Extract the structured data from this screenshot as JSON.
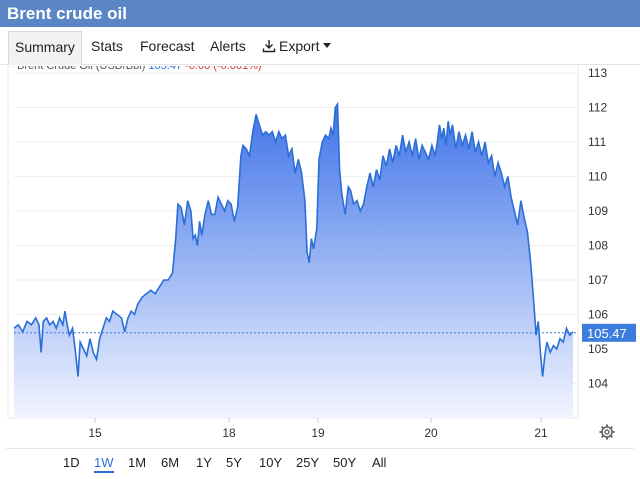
{
  "window": {
    "title": "Brent crude oil"
  },
  "tabs": [
    {
      "label": "Summary",
      "active": true
    },
    {
      "label": "Stats",
      "active": false
    },
    {
      "label": "Forecast",
      "active": false
    },
    {
      "label": "Alerts",
      "active": false
    },
    {
      "label": "Export",
      "active": false,
      "icon": "download-icon",
      "dropdown": true
    }
  ],
  "legend": {
    "name": "Brent Crude Oil (USD/Bbl)",
    "price": "105.47",
    "change": "-0.00 (-0.001%)"
  },
  "colors": {
    "line": "#2b6fd6",
    "fill_top": "#3f73e8",
    "fill_bottom": "#f2f5ff",
    "header": "#5b86c5",
    "current_label": "#3b7ddd"
  },
  "chart_data": {
    "type": "area",
    "y_ticks": [
      "113",
      "112",
      "111",
      "110",
      "109",
      "108",
      "107",
      "106",
      "105",
      "104"
    ],
    "x_ticks": [
      "15",
      "18",
      "19",
      "20",
      "21"
    ],
    "ylim": [
      103,
      113
    ],
    "current_value": 105.47,
    "current_label": "105.47",
    "grid": true,
    "points": [
      [
        0.0,
        105.6
      ],
      [
        0.4,
        105.7
      ],
      [
        0.8,
        105.5
      ],
      [
        1.2,
        105.8
      ],
      [
        1.6,
        105.7
      ],
      [
        2.0,
        105.9
      ],
      [
        2.3,
        105.7
      ],
      [
        2.5,
        104.9
      ],
      [
        2.7,
        105.8
      ],
      [
        3.0,
        105.9
      ],
      [
        3.3,
        105.7
      ],
      [
        3.6,
        105.8
      ],
      [
        3.9,
        105.6
      ],
      [
        4.2,
        105.9
      ],
      [
        4.5,
        105.7
      ],
      [
        4.7,
        106.1
      ],
      [
        4.9,
        105.7
      ],
      [
        5.1,
        105.4
      ],
      [
        5.4,
        105.6
      ],
      [
        5.7,
        104.8
      ],
      [
        5.9,
        104.2
      ],
      [
        6.1,
        105.2
      ],
      [
        6.4,
        105.0
      ],
      [
        6.7,
        104.8
      ],
      [
        7.0,
        105.3
      ],
      [
        7.3,
        104.9
      ],
      [
        7.6,
        104.7
      ],
      [
        7.9,
        105.3
      ],
      [
        8.2,
        105.6
      ],
      [
        8.5,
        105.9
      ],
      [
        8.8,
        105.8
      ],
      [
        9.1,
        106.1
      ],
      [
        9.5,
        106.0
      ],
      [
        9.9,
        105.9
      ],
      [
        10.2,
        105.5
      ],
      [
        10.5,
        105.9
      ],
      [
        10.8,
        106.1
      ],
      [
        11.1,
        106.0
      ],
      [
        11.4,
        106.3
      ],
      [
        11.8,
        106.5
      ],
      [
        12.2,
        106.6
      ],
      [
        12.6,
        106.7
      ],
      [
        13.0,
        106.6
      ],
      [
        13.4,
        106.8
      ],
      [
        13.8,
        107.0
      ],
      [
        14.2,
        107.0
      ],
      [
        14.6,
        107.2
      ],
      [
        14.9,
        108.2
      ],
      [
        15.1,
        109.2
      ],
      [
        15.4,
        109.1
      ],
      [
        15.7,
        108.6
      ],
      [
        16.0,
        109.3
      ],
      [
        16.3,
        109.0
      ],
      [
        16.5,
        108.2
      ],
      [
        16.7,
        108.3
      ],
      [
        16.9,
        108.0
      ],
      [
        17.1,
        108.7
      ],
      [
        17.3,
        108.3
      ],
      [
        17.6,
        108.9
      ],
      [
        17.9,
        109.3
      ],
      [
        18.2,
        108.9
      ],
      [
        18.5,
        108.9
      ],
      [
        18.8,
        109.4
      ],
      [
        19.1,
        109.2
      ],
      [
        19.4,
        109.0
      ],
      [
        19.7,
        109.3
      ],
      [
        20.0,
        109.2
      ],
      [
        20.3,
        108.7
      ],
      [
        20.6,
        109.1
      ],
      [
        20.9,
        110.6
      ],
      [
        21.1,
        110.9
      ],
      [
        21.4,
        110.8
      ],
      [
        21.7,
        110.6
      ],
      [
        22.0,
        111.3
      ],
      [
        22.3,
        111.8
      ],
      [
        22.6,
        111.5
      ],
      [
        22.9,
        111.2
      ],
      [
        23.2,
        111.3
      ],
      [
        23.5,
        111.2
      ],
      [
        23.8,
        111.3
      ],
      [
        24.1,
        111.0
      ],
      [
        24.4,
        111.3
      ],
      [
        24.7,
        111.1
      ],
      [
        25.0,
        111.2
      ],
      [
        25.3,
        110.6
      ],
      [
        25.6,
        110.8
      ],
      [
        25.9,
        110.1
      ],
      [
        26.2,
        110.5
      ],
      [
        26.5,
        110.1
      ],
      [
        26.8,
        109.3
      ],
      [
        27.0,
        107.8
      ],
      [
        27.2,
        107.5
      ],
      [
        27.4,
        108.2
      ],
      [
        27.6,
        107.9
      ],
      [
        27.9,
        108.5
      ],
      [
        28.1,
        110.5
      ],
      [
        28.4,
        111.0
      ],
      [
        28.7,
        111.2
      ],
      [
        29.0,
        111.1
      ],
      [
        29.2,
        111.4
      ],
      [
        29.4,
        111.2
      ],
      [
        29.6,
        112.0
      ],
      [
        29.8,
        112.1
      ],
      [
        30.0,
        110.2
      ],
      [
        30.2,
        109.5
      ],
      [
        30.5,
        108.9
      ],
      [
        30.8,
        109.7
      ],
      [
        31.0,
        109.6
      ],
      [
        31.3,
        109.2
      ],
      [
        31.6,
        109.3
      ],
      [
        31.9,
        109.0
      ],
      [
        32.2,
        109.2
      ],
      [
        32.5,
        109.7
      ],
      [
        32.8,
        110.1
      ],
      [
        33.1,
        109.7
      ],
      [
        33.4,
        110.2
      ],
      [
        33.7,
        109.9
      ],
      [
        34.0,
        110.6
      ],
      [
        34.3,
        110.3
      ],
      [
        34.6,
        110.8
      ],
      [
        34.9,
        110.4
      ],
      [
        35.2,
        110.9
      ],
      [
        35.5,
        110.6
      ],
      [
        35.8,
        111.2
      ],
      [
        36.1,
        110.7
      ],
      [
        36.4,
        111.0
      ],
      [
        36.7,
        110.6
      ],
      [
        37.0,
        111.1
      ],
      [
        37.3,
        110.5
      ],
      [
        37.6,
        110.9
      ],
      [
        37.9,
        110.7
      ],
      [
        38.2,
        110.5
      ],
      [
        38.5,
        110.9
      ],
      [
        38.8,
        110.6
      ],
      [
        39.0,
        111.0
      ],
      [
        39.2,
        111.5
      ],
      [
        39.4,
        111.1
      ],
      [
        39.6,
        111.4
      ],
      [
        39.8,
        110.9
      ],
      [
        40.0,
        111.6
      ],
      [
        40.2,
        111.2
      ],
      [
        40.4,
        111.5
      ],
      [
        40.7,
        110.8
      ],
      [
        41.0,
        111.3
      ],
      [
        41.3,
        110.9
      ],
      [
        41.6,
        111.2
      ],
      [
        41.9,
        110.8
      ],
      [
        42.2,
        111.3
      ],
      [
        42.5,
        110.7
      ],
      [
        42.8,
        111.0
      ],
      [
        43.1,
        110.6
      ],
      [
        43.4,
        111.0
      ],
      [
        43.7,
        110.4
      ],
      [
        44.0,
        110.6
      ],
      [
        44.3,
        110.0
      ],
      [
        44.6,
        110.4
      ],
      [
        44.9,
        110.1
      ],
      [
        45.2,
        109.7
      ],
      [
        45.5,
        110.0
      ],
      [
        45.8,
        109.4
      ],
      [
        46.1,
        109.0
      ],
      [
        46.4,
        108.6
      ],
      [
        46.7,
        109.3
      ],
      [
        47.0,
        108.8
      ],
      [
        47.3,
        108.4
      ],
      [
        47.6,
        107.5
      ],
      [
        47.9,
        106.3
      ],
      [
        48.1,
        105.4
      ],
      [
        48.3,
        105.8
      ],
      [
        48.5,
        104.9
      ],
      [
        48.7,
        104.2
      ],
      [
        48.9,
        104.8
      ],
      [
        49.1,
        105.2
      ],
      [
        49.4,
        104.9
      ],
      [
        49.7,
        105.1
      ],
      [
        50.0,
        105.0
      ],
      [
        50.3,
        105.3
      ],
      [
        50.6,
        105.2
      ],
      [
        50.9,
        105.6
      ],
      [
        51.2,
        105.4
      ],
      [
        51.5,
        105.5
      ]
    ],
    "x_range": [
      0,
      51.5
    ]
  },
  "ranges": [
    "1D",
    "1W",
    "1M",
    "6M",
    "1Y",
    "5Y",
    "10Y",
    "25Y",
    "50Y",
    "All"
  ],
  "active_range": "1W"
}
